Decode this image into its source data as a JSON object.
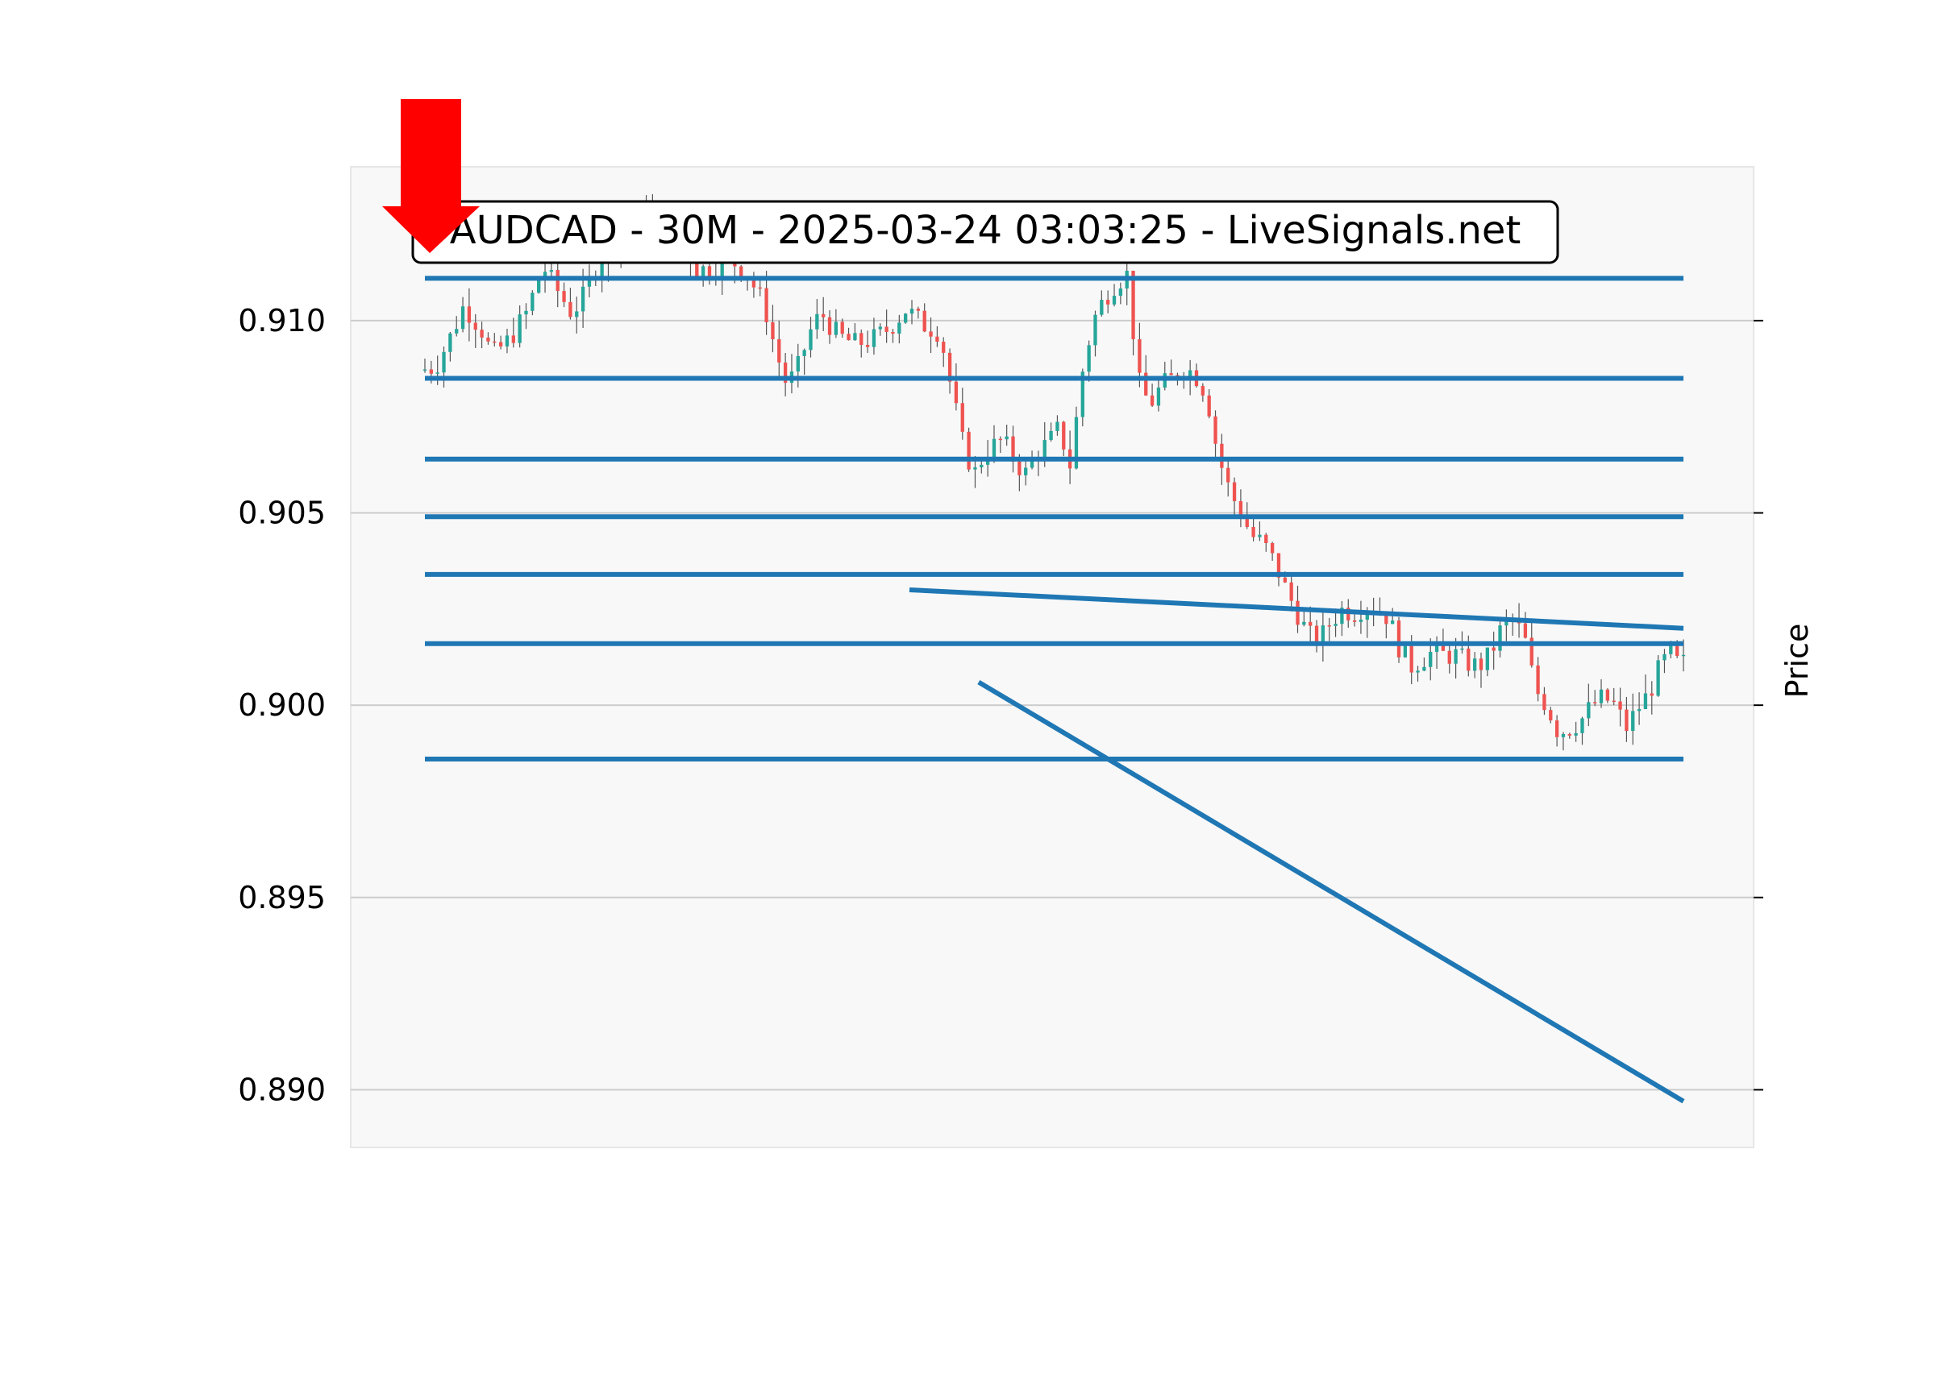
{
  "chart_data": {
    "type": "candlestick",
    "title": "AUDCAD - 30M - 2025-03-24 03:03:25 - LiveSignals.net",
    "ylabel": "Price",
    "ylim": [
      0.8885,
      0.914
    ],
    "yticks": [
      0.89,
      0.895,
      0.9,
      0.905,
      0.91
    ],
    "ytick_labels": [
      "0.890",
      "0.895",
      "0.900",
      "0.905",
      "0.910"
    ],
    "grid": true,
    "x_count": 200,
    "colors": {
      "up": "#26a69a",
      "down": "#ef5350",
      "line": "#1f77b4",
      "arrow": "#ff0000",
      "plot_bg": "#f8f8f8",
      "grid": "#cccccc"
    },
    "horizontal_levels": [
      0.9111,
      0.9085,
      0.9064,
      0.9049,
      0.9034,
      0.9016,
      0.8986
    ],
    "trend_lines": [
      {
        "x": [
          77,
          200
        ],
        "y": [
          0.903,
          0.902
        ]
      },
      {
        "x": [
          88,
          200
        ],
        "y": [
          0.9006,
          0.8897
        ]
      }
    ],
    "signal": {
      "type": "sell-arrow",
      "x": 0
    },
    "price_path": [
      [
        0,
        0.9087
      ],
      [
        3,
        0.9088
      ],
      [
        6,
        0.9097
      ],
      [
        8,
        0.9104
      ],
      [
        11,
        0.9098
      ],
      [
        13,
        0.9091
      ],
      [
        16,
        0.9095
      ],
      [
        19,
        0.9102
      ],
      [
        22,
        0.9114
      ],
      [
        24,
        0.9109
      ],
      [
        27,
        0.9102
      ],
      [
        29,
        0.9106
      ],
      [
        31,
        0.9113
      ],
      [
        34,
        0.9121
      ],
      [
        37,
        0.9124
      ],
      [
        40,
        0.9128
      ],
      [
        43,
        0.9127
      ],
      [
        46,
        0.9123
      ],
      [
        49,
        0.9113
      ],
      [
        52,
        0.9114
      ],
      [
        55,
        0.9116
      ],
      [
        58,
        0.9112
      ],
      [
        61,
        0.9104
      ],
      [
        63,
        0.9092
      ],
      [
        65,
        0.9083
      ],
      [
        67,
        0.9088
      ],
      [
        69,
        0.9097
      ],
      [
        71,
        0.9102
      ],
      [
        74,
        0.9096
      ],
      [
        77,
        0.9094
      ],
      [
        80,
        0.9095
      ],
      [
        83,
        0.9098
      ],
      [
        86,
        0.9103
      ],
      [
        89,
        0.9099
      ],
      [
        92,
        0.9097
      ],
      [
        94,
        0.9082
      ],
      [
        96,
        0.9068
      ],
      [
        98,
        0.906
      ],
      [
        100,
        0.9066
      ],
      [
        103,
        0.9069
      ],
      [
        105,
        0.9064
      ],
      [
        107,
        0.906
      ],
      [
        109,
        0.9066
      ],
      [
        111,
        0.9068
      ],
      [
        113,
        0.9072
      ],
      [
        115,
        0.9062
      ],
      [
        117,
        0.9086
      ],
      [
        119,
        0.91
      ],
      [
        121,
        0.9106
      ],
      [
        123,
        0.911
      ],
      [
        125,
        0.9112
      ],
      [
        127,
        0.9084
      ],
      [
        129,
        0.9078
      ],
      [
        131,
        0.9083
      ],
      [
        133,
        0.9085
      ],
      [
        135,
        0.9088
      ],
      [
        137,
        0.9086
      ],
      [
        139,
        0.9081
      ],
      [
        141,
        0.9065
      ],
      [
        143,
        0.9056
      ],
      [
        145,
        0.905
      ],
      [
        147,
        0.9044
      ],
      [
        149,
        0.9042
      ],
      [
        151,
        0.9037
      ],
      [
        153,
        0.903
      ],
      [
        155,
        0.9024
      ],
      [
        157,
        0.9018
      ],
      [
        159,
        0.9017
      ],
      [
        161,
        0.9022
      ],
      [
        163,
        0.9025
      ],
      [
        165,
        0.9024
      ],
      [
        167,
        0.9026
      ],
      [
        169,
        0.9025
      ],
      [
        171,
        0.9023
      ],
      [
        173,
        0.9015
      ],
      [
        175,
        0.901
      ],
      [
        177,
        0.9012
      ],
      [
        179,
        0.9014
      ],
      [
        181,
        0.9013
      ],
      [
        183,
        0.9013
      ],
      [
        185,
        0.9011
      ],
      [
        187,
        0.901
      ],
      [
        189,
        0.9013
      ],
      [
        191,
        0.902
      ],
      [
        193,
        0.9022
      ],
      [
        195,
        0.9018
      ],
      [
        197,
        0.9004
      ],
      [
        199,
        0.9
      ],
      [
        201,
        0.8993
      ],
      [
        203,
        0.8994
      ],
      [
        205,
        0.8996
      ],
      [
        207,
        0.9
      ],
      [
        209,
        0.9002
      ],
      [
        211,
        0.9
      ],
      [
        213,
        0.8994
      ],
      [
        215,
        0.8999
      ],
      [
        217,
        0.9003
      ],
      [
        219,
        0.901
      ],
      [
        221,
        0.9014
      ],
      [
        222,
        0.9011
      ]
    ]
  }
}
